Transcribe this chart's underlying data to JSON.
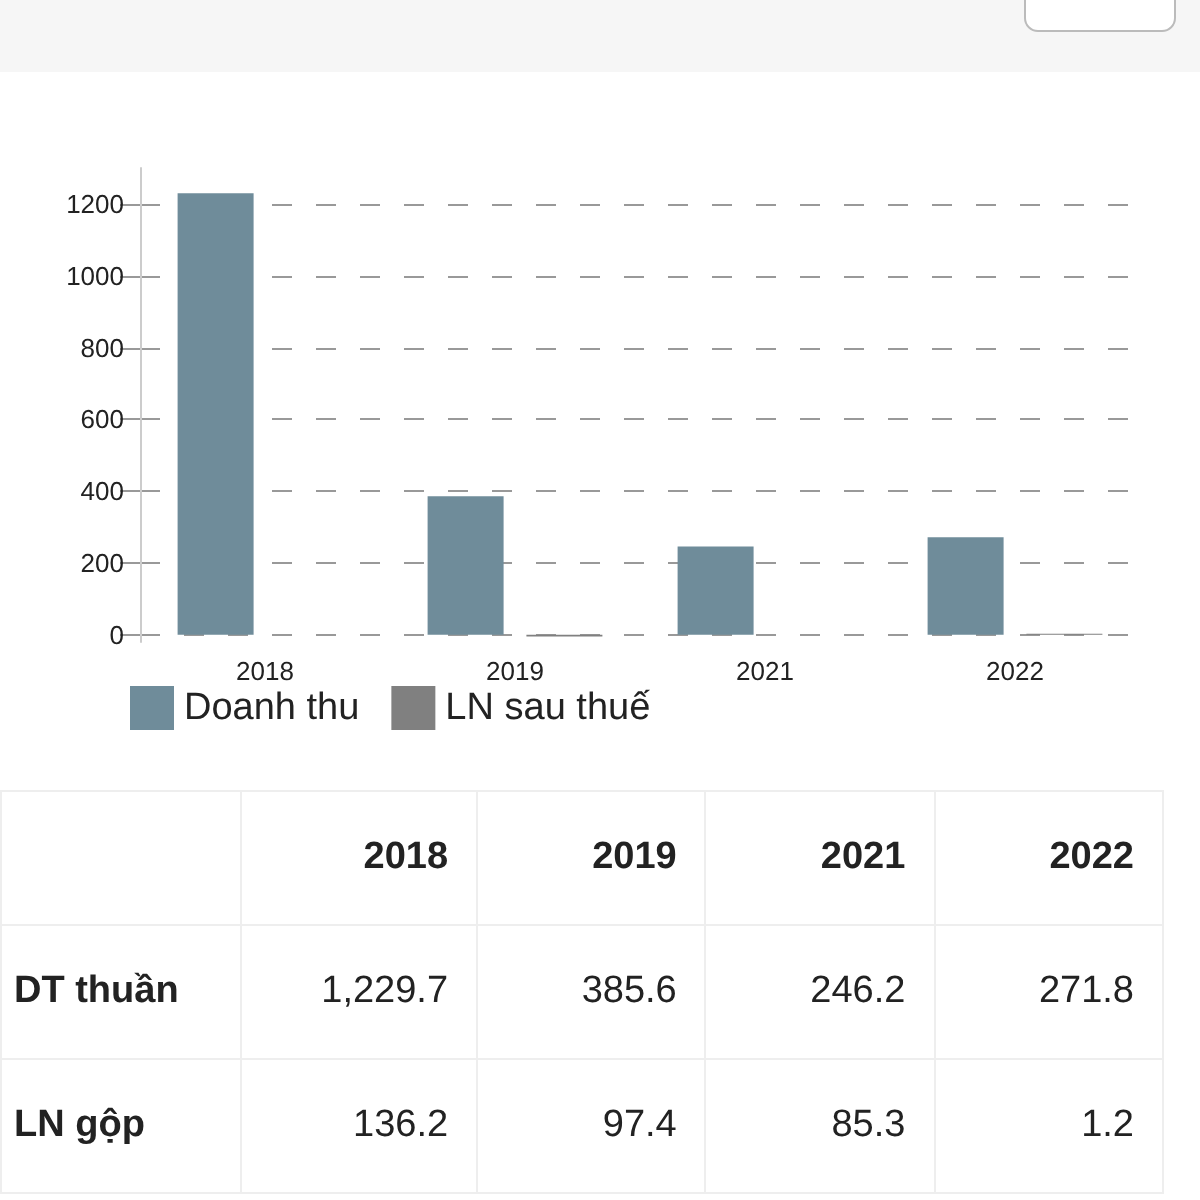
{
  "chart_data": {
    "type": "bar",
    "categories": [
      "2018",
      "2019",
      "2021",
      "2022"
    ],
    "series": [
      {
        "name": "Doanh thu",
        "color": "#6f8c9a",
        "values": [
          1229.7,
          385.6,
          246.2,
          271.8
        ],
        "value_labels": [
          "1,229.7",
          "385.6",
          "246.2",
          "271.8"
        ]
      },
      {
        "name": "LN sau thuế",
        "color": "#808080",
        "values": [
          0,
          -5,
          0,
          3
        ]
      }
    ],
    "ylim": [
      -20,
      1300
    ],
    "yticks": [
      0,
      200,
      400,
      600,
      800,
      {
        "value": 1000,
        "label": "1000"
      },
      {
        "value": 1200,
        "label": "1200"
      }
    ],
    "grid": "y",
    "legend": "bottom left",
    "annotations": [
      "DT thuần",
      "LN gộp",
      "136.2",
      "97.4",
      "85.3",
      "1.2"
    ]
  }
}
